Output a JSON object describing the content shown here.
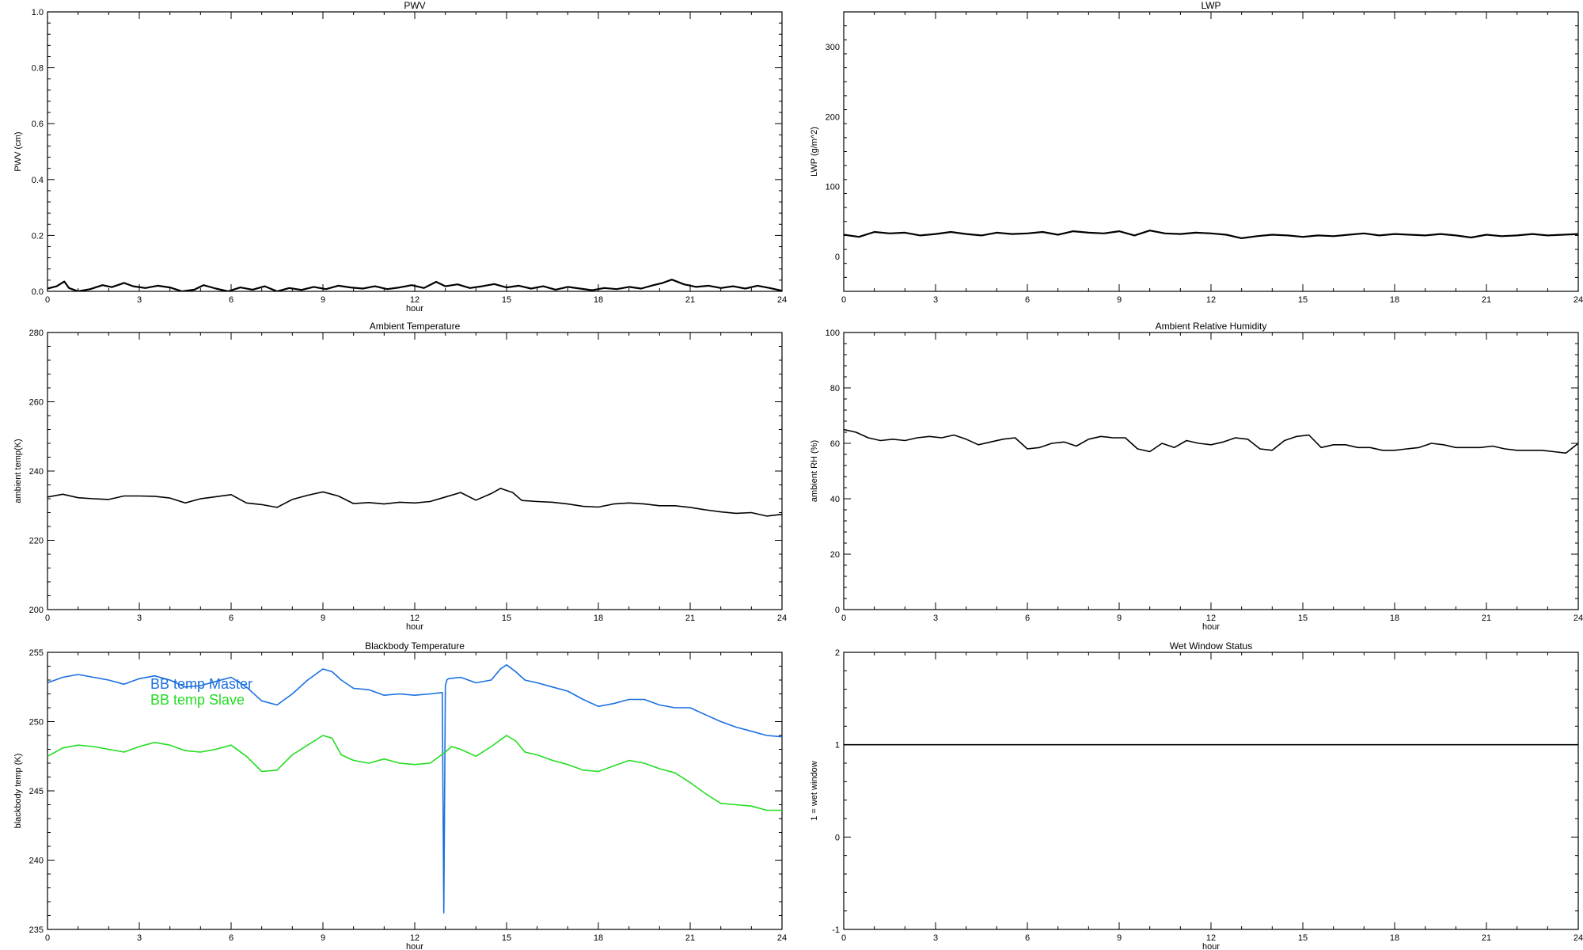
{
  "chart_data": [
    {
      "id": "pwv",
      "type": "line",
      "title": "PWV",
      "xlabel": "hour",
      "ylabel": "PWV (cm)",
      "xlim": [
        0,
        24
      ],
      "ylim": [
        0,
        1
      ],
      "xticks": [
        0,
        3,
        6,
        9,
        12,
        15,
        18,
        21,
        24
      ],
      "xtick_labels": [
        "0",
        "3",
        "6",
        "9",
        "12",
        "15",
        "18",
        "21",
        "24"
      ],
      "yticks": [
        0,
        0.2,
        0.4,
        0.6,
        0.8,
        1.0
      ],
      "ytick_labels": [
        "0.0",
        "0.2",
        "0.4",
        "0.6",
        "0.8",
        "1.0"
      ],
      "grid": false,
      "series": [
        {
          "color": "#000000",
          "x": [
            0,
            0.3,
            0.55,
            0.7,
            1.0,
            1.4,
            1.8,
            2.1,
            2.5,
            2.8,
            3.2,
            3.6,
            4.0,
            4.4,
            4.8,
            5.1,
            5.5,
            5.9,
            6.3,
            6.7,
            7.1,
            7.5,
            7.9,
            8.3,
            8.7,
            9.1,
            9.5,
            9.9,
            10.3,
            10.7,
            11.1,
            11.5,
            11.9,
            12.3,
            12.7,
            13.0,
            13.4,
            13.8,
            14.2,
            14.6,
            15.0,
            15.4,
            15.8,
            16.2,
            16.6,
            17.0,
            17.4,
            17.8,
            18.2,
            18.6,
            19.0,
            19.4,
            19.8,
            20.1,
            20.4,
            20.8,
            21.2,
            21.6,
            22.0,
            22.4,
            22.8,
            23.2,
            23.6,
            24.0
          ],
          "y": [
            0.01,
            0.018,
            0.035,
            0.012,
            0.0,
            0.008,
            0.022,
            0.015,
            0.03,
            0.018,
            0.012,
            0.02,
            0.014,
            0.0,
            0.006,
            0.022,
            0.01,
            0.0,
            0.014,
            0.006,
            0.018,
            0.0,
            0.012,
            0.005,
            0.016,
            0.008,
            0.02,
            0.014,
            0.01,
            0.018,
            0.008,
            0.014,
            0.022,
            0.012,
            0.034,
            0.018,
            0.025,
            0.012,
            0.018,
            0.026,
            0.014,
            0.02,
            0.01,
            0.018,
            0.006,
            0.016,
            0.01,
            0.004,
            0.012,
            0.008,
            0.016,
            0.01,
            0.022,
            0.03,
            0.042,
            0.025,
            0.016,
            0.02,
            0.012,
            0.018,
            0.01,
            0.02,
            0.012,
            0.002
          ]
        }
      ]
    },
    {
      "id": "lwp",
      "type": "line",
      "title": "LWP",
      "xlabel": "",
      "ylabel": "LWP (g/m^2)",
      "xlim": [
        0,
        24
      ],
      "ylim": [
        -50,
        350
      ],
      "xticks": [
        0,
        3,
        6,
        9,
        12,
        15,
        18,
        21,
        24
      ],
      "xtick_labels": [
        "0",
        "3",
        "6",
        "9",
        "12",
        "15",
        "18",
        "21",
        "24"
      ],
      "yticks": [
        0,
        100,
        200,
        300
      ],
      "ytick_labels": [
        "0",
        "100",
        "200",
        "300"
      ],
      "grid": false,
      "series": [
        {
          "color": "#000000",
          "x": [
            0,
            0.5,
            1.0,
            1.5,
            2.0,
            2.5,
            3.0,
            3.5,
            4.0,
            4.5,
            5.0,
            5.5,
            6.0,
            6.5,
            7.0,
            7.5,
            8.0,
            8.5,
            9.0,
            9.5,
            10.0,
            10.5,
            11.0,
            11.5,
            12.0,
            12.5,
            13.0,
            13.5,
            14.0,
            14.5,
            15.0,
            15.5,
            16.0,
            16.5,
            17.0,
            17.5,
            18.0,
            18.5,
            19.0,
            19.5,
            20.0,
            20.5,
            21.0,
            21.5,
            22.0,
            22.5,
            23.0,
            23.5,
            24.0
          ],
          "y": [
            31,
            28,
            35,
            33,
            34,
            30,
            32,
            35,
            32,
            30,
            34,
            32,
            33,
            35,
            31,
            36,
            34,
            33,
            36,
            30,
            37,
            33,
            32,
            34,
            33,
            31,
            26,
            29,
            31,
            30,
            28,
            30,
            29,
            31,
            33,
            30,
            32,
            31,
            30,
            32,
            30,
            27,
            31,
            29,
            30,
            32,
            30,
            31,
            32
          ]
        }
      ]
    },
    {
      "id": "ambient-temp",
      "type": "line",
      "title": "Ambient Temperature",
      "xlabel": "hour",
      "ylabel": "ambient temp(K)",
      "xlim": [
        0,
        24
      ],
      "ylim": [
        200,
        280
      ],
      "xticks": [
        0,
        3,
        6,
        9,
        12,
        15,
        18,
        21,
        24
      ],
      "xtick_labels": [
        "0",
        "3",
        "6",
        "9",
        "12",
        "15",
        "18",
        "21",
        "24"
      ],
      "yticks": [
        200,
        220,
        240,
        260,
        280
      ],
      "ytick_labels": [
        "200",
        "220",
        "240",
        "260",
        "280"
      ],
      "grid": false,
      "series": [
        {
          "color": "#000000",
          "x": [
            0,
            0.5,
            1.0,
            1.5,
            2.0,
            2.5,
            3.0,
            3.5,
            4.0,
            4.5,
            5.0,
            5.5,
            6.0,
            6.5,
            7.0,
            7.5,
            8.0,
            8.5,
            9.0,
            9.5,
            10.0,
            10.5,
            11.0,
            11.5,
            12.0,
            12.5,
            13.0,
            13.5,
            14.0,
            14.5,
            14.8,
            15.2,
            15.5,
            16.0,
            16.5,
            17.0,
            17.5,
            18.0,
            18.5,
            19.0,
            19.5,
            20.0,
            20.5,
            21.0,
            21.5,
            22.0,
            22.5,
            23.0,
            23.5,
            24.0
          ],
          "y": [
            232.5,
            233.3,
            232.3,
            232.0,
            231.8,
            232.8,
            232.8,
            232.7,
            232.2,
            230.8,
            232.0,
            232.6,
            233.2,
            230.8,
            230.3,
            229.5,
            231.8,
            233.0,
            234.0,
            232.8,
            230.6,
            230.9,
            230.5,
            231.0,
            230.8,
            231.2,
            232.5,
            233.8,
            231.6,
            233.5,
            235.0,
            233.8,
            231.5,
            231.2,
            231.0,
            230.5,
            229.8,
            229.6,
            230.5,
            230.8,
            230.5,
            230.0,
            230.0,
            229.5,
            228.8,
            228.2,
            227.8,
            228.0,
            227.0,
            227.5
          ]
        }
      ]
    },
    {
      "id": "ambient-rh",
      "type": "line",
      "title": "Ambient Relative Humidity",
      "xlabel": "hour",
      "ylabel": "ambient RH (%)",
      "xlim": [
        0,
        24
      ],
      "ylim": [
        0,
        100
      ],
      "xticks": [
        0,
        3,
        6,
        9,
        12,
        15,
        18,
        21,
        24
      ],
      "xtick_labels": [
        "0",
        "3",
        "6",
        "9",
        "12",
        "15",
        "18",
        "21",
        "24"
      ],
      "yticks": [
        0,
        20,
        40,
        60,
        80,
        100
      ],
      "ytick_labels": [
        "0",
        "20",
        "40",
        "60",
        "80",
        "100"
      ],
      "grid": false,
      "series": [
        {
          "color": "#000000",
          "x": [
            0,
            0.4,
            0.8,
            1.2,
            1.6,
            2.0,
            2.4,
            2.8,
            3.2,
            3.6,
            4.0,
            4.4,
            4.8,
            5.2,
            5.6,
            6.0,
            6.4,
            6.8,
            7.2,
            7.6,
            8.0,
            8.4,
            8.8,
            9.2,
            9.6,
            10.0,
            10.4,
            10.8,
            11.2,
            11.6,
            12.0,
            12.4,
            12.8,
            13.2,
            13.6,
            14.0,
            14.4,
            14.8,
            15.2,
            15.6,
            16.0,
            16.4,
            16.8,
            17.2,
            17.6,
            18.0,
            18.4,
            18.8,
            19.2,
            19.6,
            20.0,
            20.4,
            20.8,
            21.2,
            21.6,
            22.0,
            22.4,
            22.8,
            23.2,
            23.6,
            24.0
          ],
          "y": [
            65.0,
            64.0,
            62.0,
            61.0,
            61.5,
            61.0,
            62.0,
            62.5,
            62.0,
            63.0,
            61.5,
            59.5,
            60.5,
            61.5,
            62.0,
            58.0,
            58.5,
            60.0,
            60.5,
            59.0,
            61.5,
            62.5,
            62.0,
            62.0,
            58.0,
            57.0,
            60.0,
            58.5,
            61.0,
            60.0,
            59.5,
            60.5,
            62.0,
            61.5,
            58.0,
            57.5,
            61.0,
            62.5,
            63.0,
            58.5,
            59.5,
            59.5,
            58.5,
            58.5,
            57.5,
            57.5,
            58.0,
            58.5,
            60.0,
            59.5,
            58.5,
            58.5,
            58.5,
            59.0,
            58.0,
            57.5,
            57.5,
            57.5,
            57.0,
            56.5,
            60.0
          ]
        }
      ]
    },
    {
      "id": "blackbody-temp",
      "type": "line",
      "title": "Blackbody Temperature",
      "xlabel": "hour",
      "ylabel": "blackbody temp (K)",
      "xlim": [
        0,
        24
      ],
      "ylim": [
        235,
        255
      ],
      "xticks": [
        0,
        3,
        6,
        9,
        12,
        15,
        18,
        21,
        24
      ],
      "xtick_labels": [
        "0",
        "3",
        "6",
        "9",
        "12",
        "15",
        "18",
        "21",
        "24"
      ],
      "yticks": [
        235,
        240,
        245,
        250,
        255
      ],
      "ytick_labels": [
        "235",
        "240",
        "245",
        "250",
        "255"
      ],
      "grid": false,
      "series": [
        {
          "name": "BB temp Master",
          "color": "#1a6fe0",
          "x": [
            0,
            0.5,
            1.0,
            1.5,
            2.0,
            2.5,
            3.0,
            3.5,
            4.0,
            4.5,
            5.0,
            5.5,
            6.0,
            6.5,
            7.0,
            7.5,
            8.0,
            8.5,
            9.0,
            9.3,
            9.6,
            10.0,
            10.5,
            11.0,
            11.5,
            12.0,
            12.5,
            12.9,
            12.95,
            13.0,
            13.05,
            13.1,
            13.5,
            14.0,
            14.5,
            14.8,
            15.0,
            15.3,
            15.6,
            16.0,
            16.5,
            17.0,
            17.5,
            18.0,
            18.5,
            19.0,
            19.5,
            20.0,
            20.5,
            21.0,
            21.5,
            22.0,
            22.5,
            23.0,
            23.5,
            24.0
          ],
          "y": [
            252.8,
            253.2,
            253.4,
            253.2,
            253.0,
            252.7,
            253.1,
            253.3,
            253.0,
            252.5,
            252.6,
            252.9,
            253.2,
            252.5,
            251.5,
            251.2,
            252.0,
            253.0,
            253.8,
            253.6,
            253.0,
            252.4,
            252.3,
            251.9,
            252.0,
            251.9,
            252.0,
            252.1,
            236.2,
            252.6,
            253.0,
            253.1,
            253.2,
            252.8,
            253.0,
            253.8,
            254.1,
            253.6,
            253.0,
            252.8,
            252.5,
            252.2,
            251.6,
            251.1,
            251.3,
            251.6,
            251.6,
            251.2,
            251.0,
            251.0,
            250.5,
            250.0,
            249.6,
            249.3,
            249.0,
            248.9
          ]
        },
        {
          "name": "BB temp Slave",
          "color": "#22dd22",
          "x": [
            0,
            0.5,
            1.0,
            1.5,
            2.0,
            2.5,
            3.0,
            3.5,
            4.0,
            4.5,
            5.0,
            5.5,
            6.0,
            6.5,
            7.0,
            7.5,
            8.0,
            8.5,
            9.0,
            9.3,
            9.6,
            10.0,
            10.5,
            11.0,
            11.5,
            12.0,
            12.5,
            13.0,
            13.2,
            13.5,
            14.0,
            14.5,
            15.0,
            15.3,
            15.6,
            16.0,
            16.5,
            17.0,
            17.5,
            18.0,
            18.5,
            19.0,
            19.5,
            20.0,
            20.5,
            21.0,
            21.5,
            22.0,
            22.5,
            23.0,
            23.5,
            24.0
          ],
          "y": [
            247.5,
            248.1,
            248.3,
            248.2,
            248.0,
            247.8,
            248.2,
            248.5,
            248.3,
            247.9,
            247.8,
            248.0,
            248.3,
            247.5,
            246.4,
            246.5,
            247.6,
            248.3,
            249.0,
            248.8,
            247.6,
            247.2,
            247.0,
            247.3,
            247.0,
            246.9,
            247.0,
            247.8,
            248.2,
            248.0,
            247.5,
            248.2,
            249.0,
            248.6,
            247.8,
            247.6,
            247.2,
            246.9,
            246.5,
            246.4,
            246.8,
            247.2,
            247.0,
            246.6,
            246.3,
            245.6,
            244.8,
            244.1,
            244.0,
            243.9,
            243.6,
            243.6
          ]
        }
      ],
      "legend": "top-left"
    },
    {
      "id": "wet-window",
      "type": "line",
      "title": "Wet Window Status",
      "xlabel": "hour",
      "ylabel": "1 = wet window",
      "xlim": [
        0,
        24
      ],
      "ylim": [
        -1,
        2
      ],
      "xticks": [
        0,
        3,
        6,
        9,
        12,
        15,
        18,
        21,
        24
      ],
      "xtick_labels": [
        "0",
        "3",
        "6",
        "9",
        "12",
        "15",
        "18",
        "21",
        "24"
      ],
      "yticks": [
        -1,
        0,
        1,
        2
      ],
      "ytick_labels": [
        "-1",
        "0",
        "1",
        "2"
      ],
      "grid": false,
      "series": [
        {
          "color": "#000000",
          "x": [
            0,
            24
          ],
          "y": [
            1,
            1
          ]
        }
      ]
    }
  ]
}
